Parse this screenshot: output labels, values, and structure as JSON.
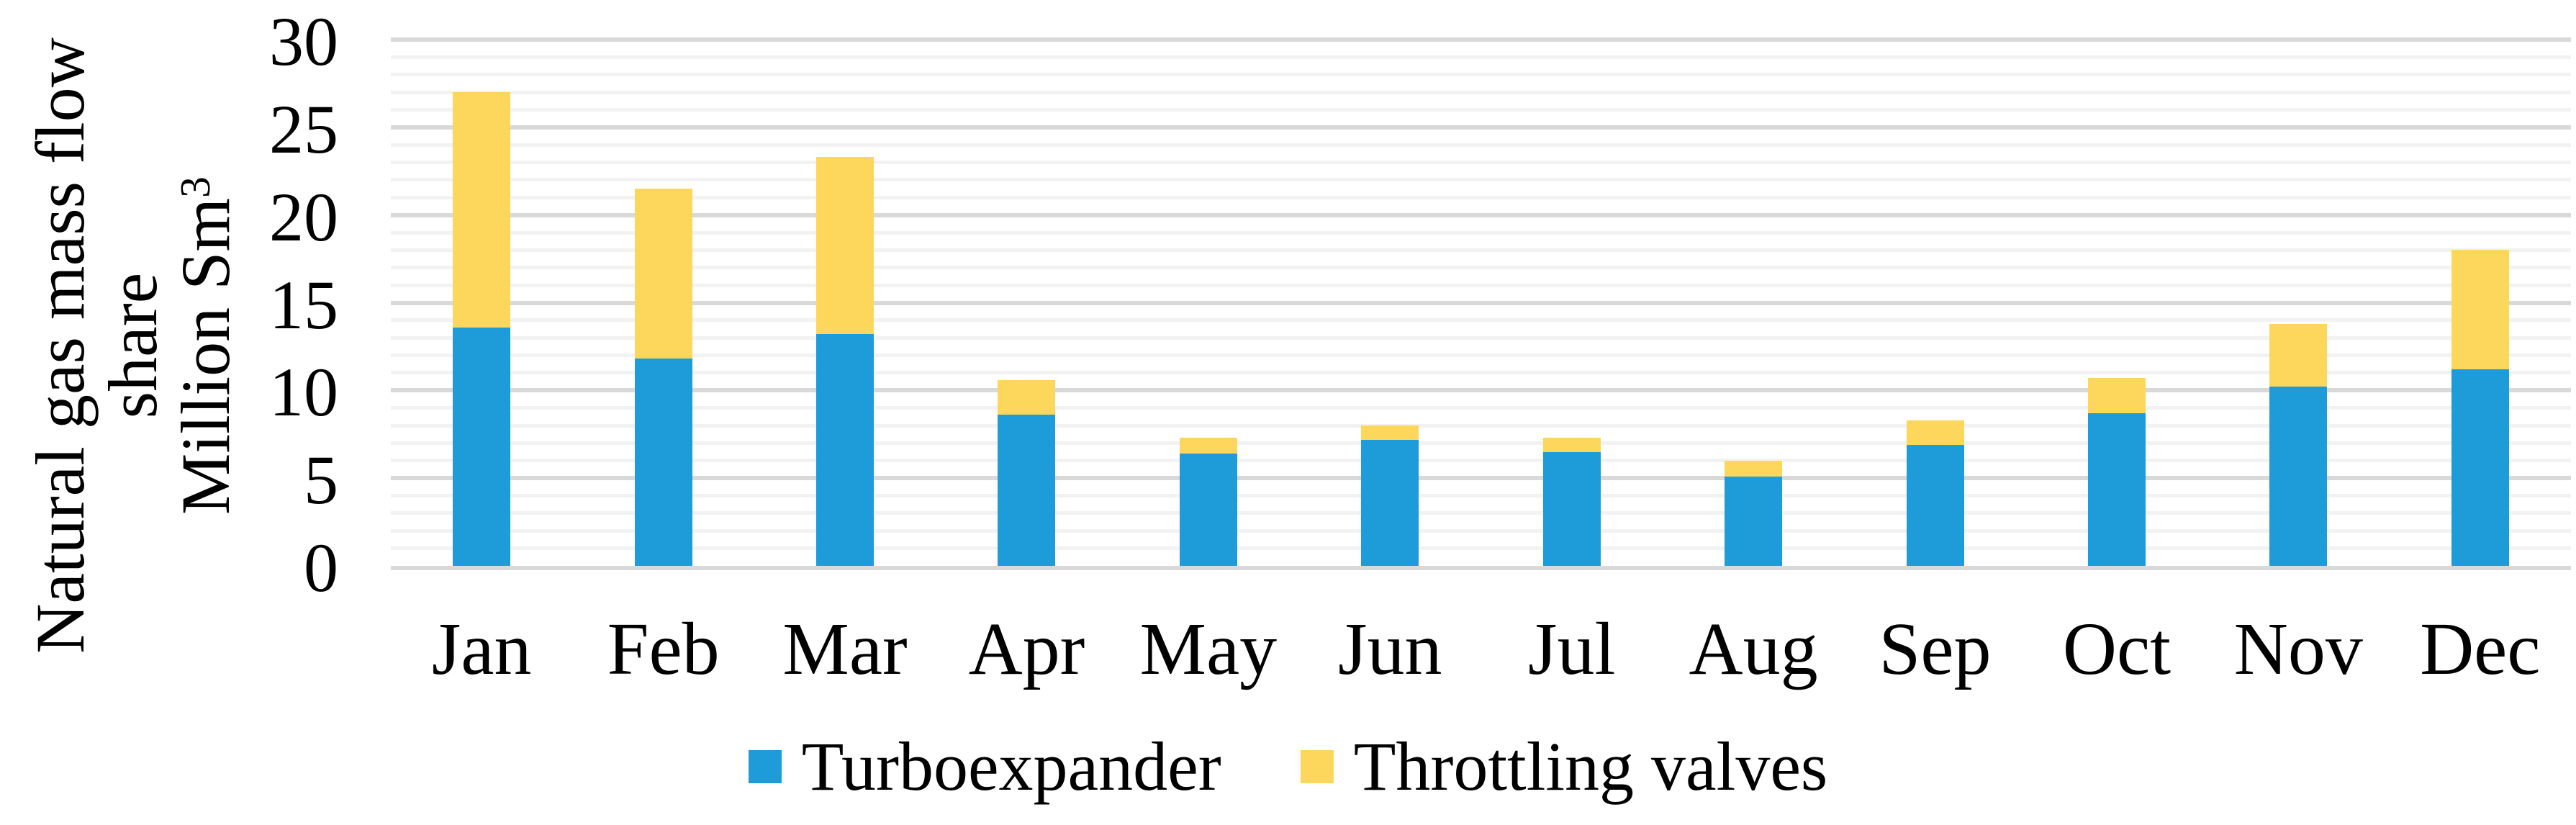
{
  "chart_data": {
    "type": "bar",
    "stacked": true,
    "title": "",
    "categories": [
      "Jan",
      "Feb",
      "Mar",
      "Apr",
      "May",
      "Jun",
      "Jul",
      "Aug",
      "Sep",
      "Oct",
      "Nov",
      "Dec"
    ],
    "series": [
      {
        "name": "Turboexpander",
        "color": "#1d9cd9",
        "values": [
          13.6,
          11.8,
          13.2,
          8.6,
          6.4,
          7.2,
          6.5,
          5.1,
          6.9,
          8.7,
          10.2,
          11.2
        ]
      },
      {
        "name": "Throttling valves",
        "color": "#fdd75c",
        "values": [
          13.4,
          9.7,
          10.1,
          2.0,
          0.9,
          0.8,
          0.8,
          0.9,
          1.4,
          2.0,
          3.6,
          6.8
        ]
      }
    ],
    "stack_totals": [
      27.0,
      21.5,
      23.3,
      10.6,
      7.3,
      8.0,
      7.3,
      6.0,
      8.3,
      10.7,
      13.8,
      18.0
    ],
    "ylabel_lines": [
      "Natural gas mass flow",
      "share"
    ],
    "ylabel_unit_base": "Million Sm",
    "ylabel_unit_sup": "3",
    "xlabel": "",
    "ylim": [
      0,
      30
    ],
    "ytick_step": 5,
    "minor_grid_step": 1,
    "yticks": [
      "0",
      "5",
      "10",
      "15",
      "20",
      "25",
      "30"
    ],
    "grid": {
      "major_color": "#d9d9d9",
      "minor_color": "#f2f2f2",
      "grid_on": true
    },
    "legend_position": "bottom-center",
    "text_color": "#000000",
    "background_color": "#ffffff"
  }
}
